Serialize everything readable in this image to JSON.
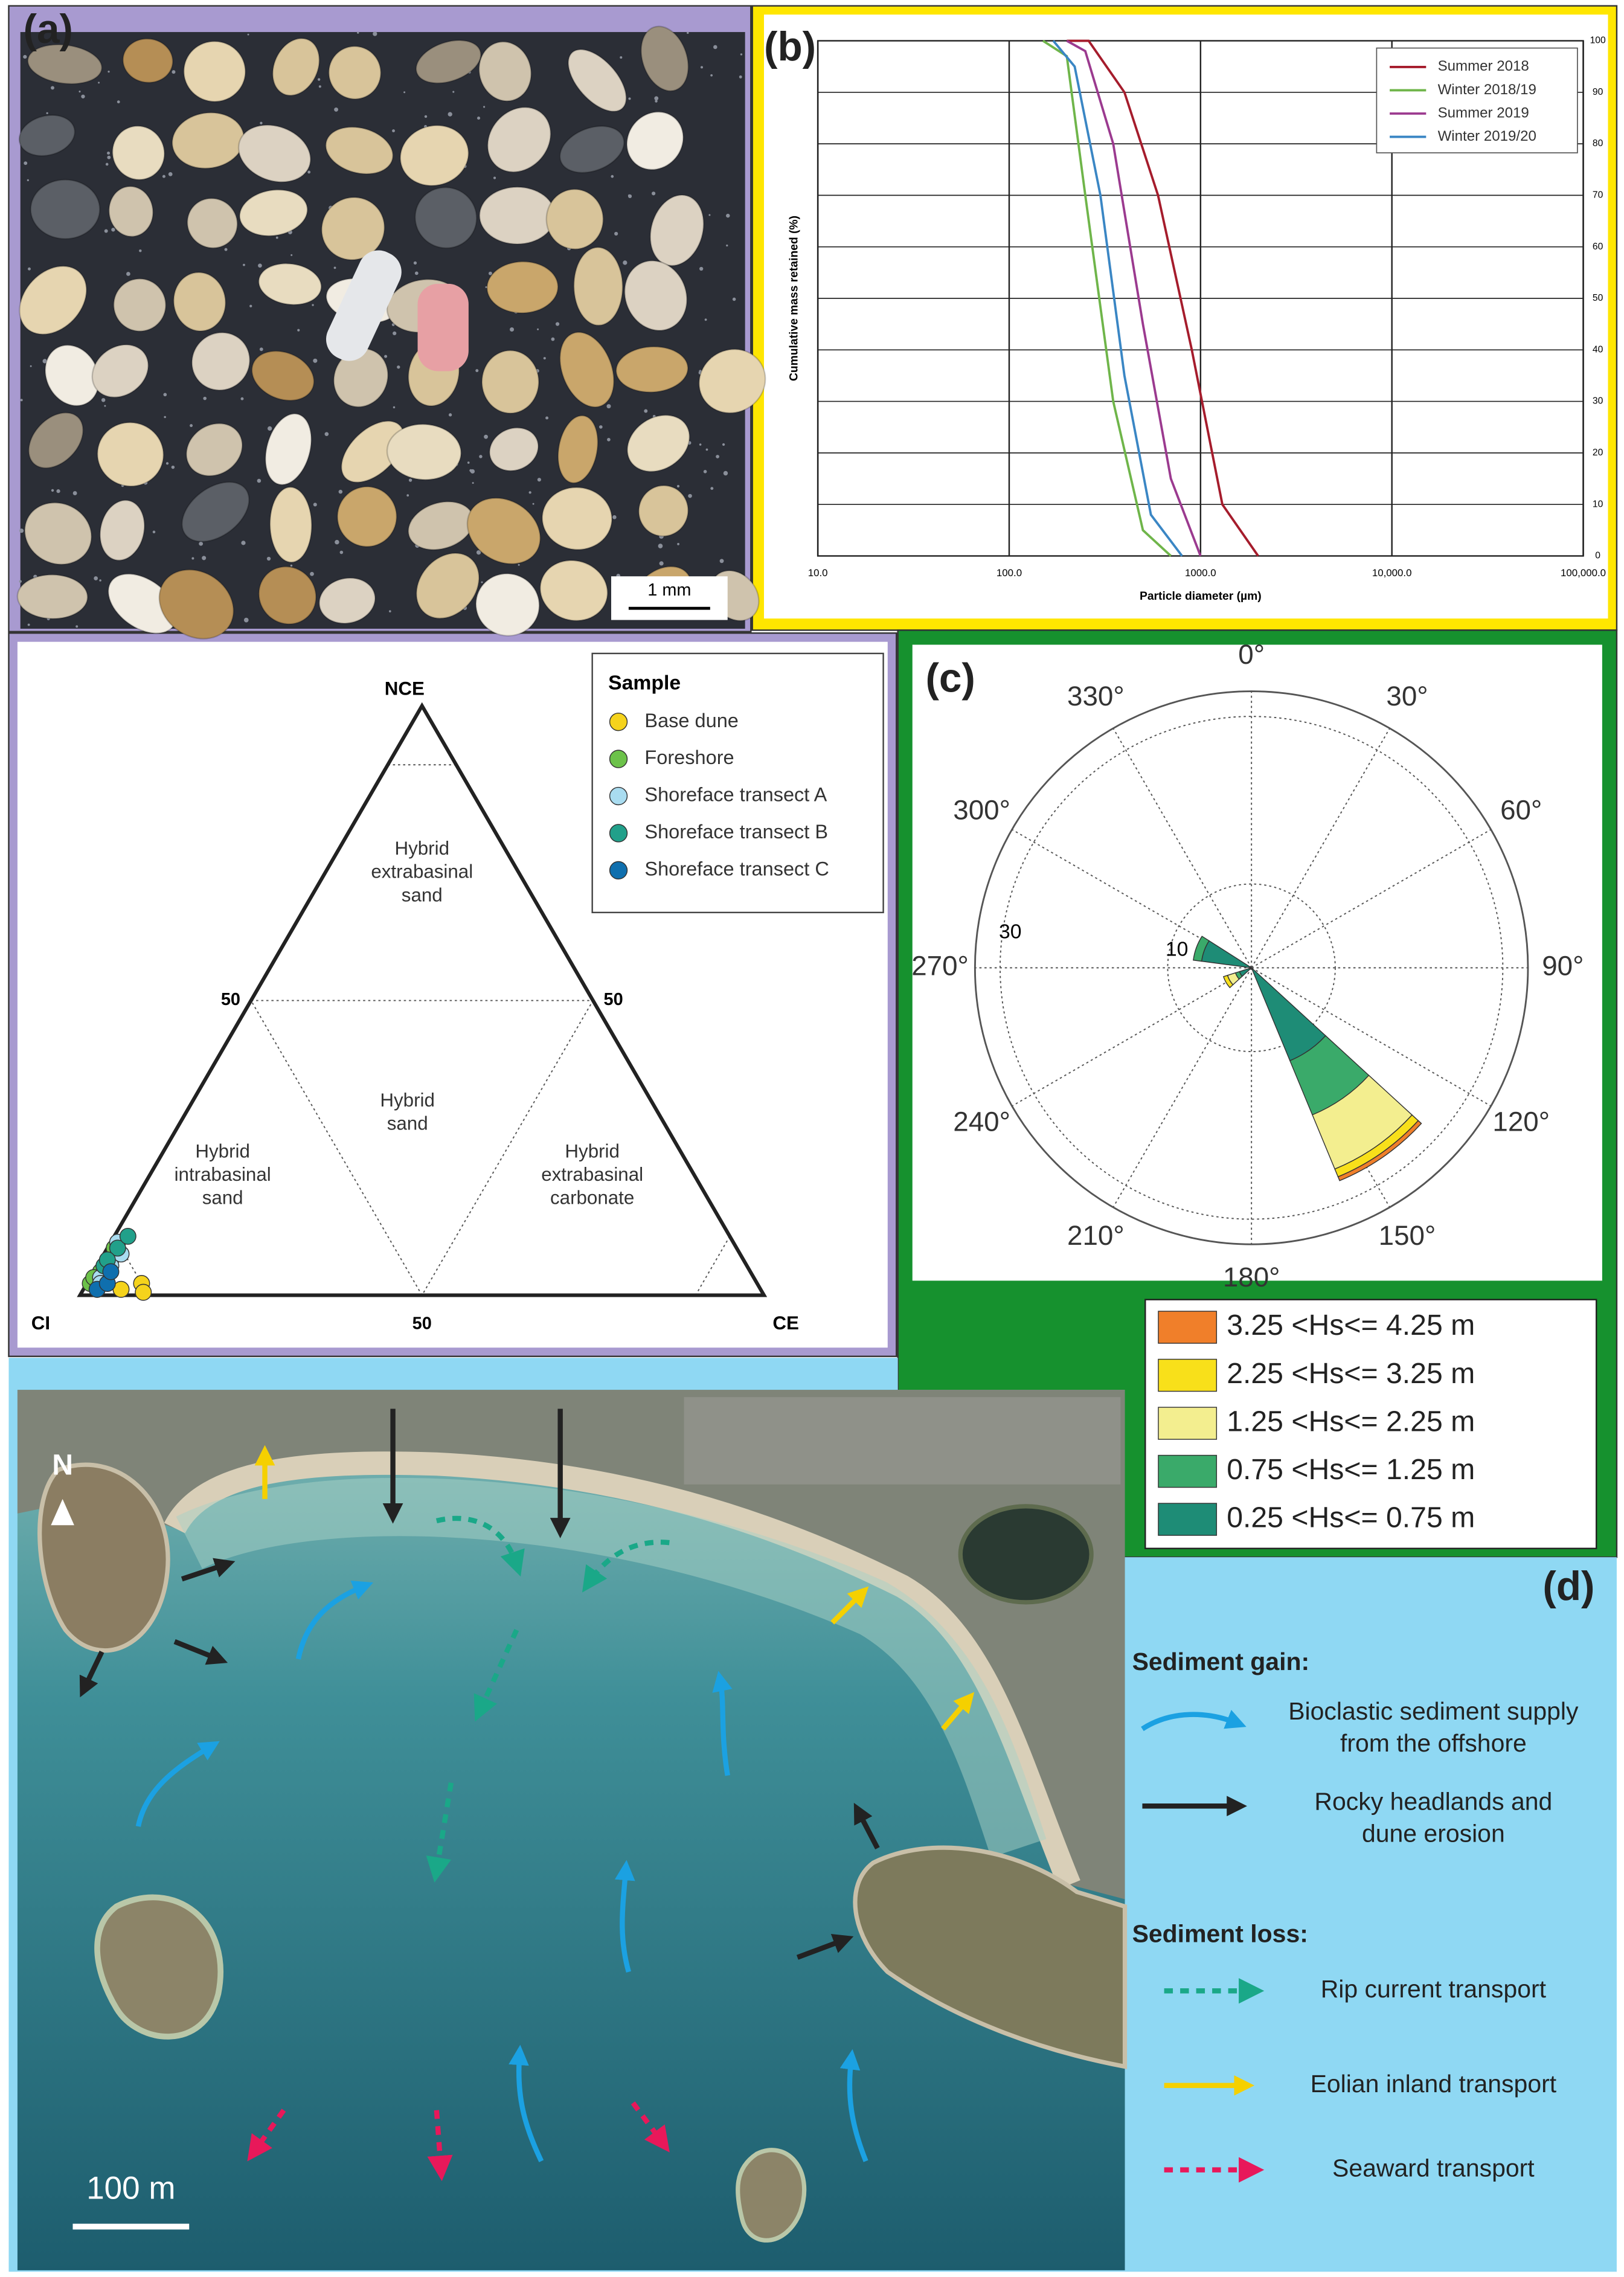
{
  "panel_a": {
    "label": "(a)",
    "scale_bar": "1 mm"
  },
  "chart_data": [
    {
      "type": "line",
      "label": "(b)",
      "xlabel": "Particle diameter (µm)",
      "ylabel": "Cumulative mass retained (%)",
      "xlog": true,
      "xlim": [
        10,
        100000
      ],
      "xticks": [
        {
          "value": 10,
          "label": "10.0"
        },
        {
          "value": 100,
          "label": "100.0"
        },
        {
          "value": 1000,
          "label": "1000.0"
        },
        {
          "value": 10000,
          "label": "10,000.0"
        },
        {
          "value": 100000,
          "label": "100,000.0"
        }
      ],
      "ylim": [
        0,
        100
      ],
      "yticks": [
        0,
        10,
        20,
        30,
        40,
        50,
        60,
        70,
        80,
        90,
        100
      ],
      "grid": true,
      "legend": "upper right",
      "series": [
        {
          "name": "Summer 2018",
          "color": "#a51c2c",
          "x": [
            200,
            260,
            400,
            600,
            900,
            1300,
            2000
          ],
          "values": [
            100,
            100,
            90,
            70,
            40,
            10,
            0
          ]
        },
        {
          "name": "Winter 2018/19",
          "color": "#6fb54a",
          "x": [
            150,
            200,
            250,
            350,
            500,
            700
          ],
          "values": [
            100,
            97,
            70,
            30,
            5,
            0
          ]
        },
        {
          "name": "Summer 2019",
          "color": "#9b3a8f",
          "x": [
            200,
            250,
            350,
            500,
            700,
            1000
          ],
          "values": [
            100,
            98,
            80,
            45,
            15,
            0
          ]
        },
        {
          "name": "Winter 2019/20",
          "color": "#3a86c4",
          "x": [
            170,
            220,
            300,
            400,
            550,
            800
          ],
          "values": [
            100,
            95,
            70,
            35,
            8,
            0
          ]
        }
      ]
    },
    {
      "type": "ternary",
      "legend_title": "Sample",
      "vertices": {
        "top": "NCE",
        "left": "CI",
        "right": "CE"
      },
      "left_ticks": [
        50
      ],
      "right_ticks": [
        50
      ],
      "bottom_ticks": [
        50
      ],
      "regions": [
        [
          "Hybrid",
          "extrabasinal",
          "sand"
        ],
        [
          "Hybrid",
          "sand"
        ],
        [
          "Hybrid",
          "intrabasinal",
          "sand"
        ],
        [
          "Hybrid",
          "extrabasinal",
          "carbonate"
        ]
      ],
      "series": [
        {
          "name": "Base dune",
          "color": "#f5d31c",
          "ce": [
            5.5,
            8,
            9
          ],
          "nce": [
            1,
            2,
            0.5
          ]
        },
        {
          "name": "Foreshore",
          "color": "#6cc24a",
          "ce": [
            0.5,
            1,
            1.5,
            1,
            0.5,
            2
          ],
          "nce": [
            2,
            4,
            6,
            8,
            3,
            1
          ]
        },
        {
          "name": "Shoreface transect A",
          "color": "#a9dcf0",
          "ce": [
            1.5,
            2,
            2.5,
            1,
            2
          ],
          "nce": [
            3,
            5,
            7,
            9,
            2
          ]
        },
        {
          "name": "Shoreface transect B",
          "color": "#21a08a",
          "ce": [
            1,
            1.5,
            2,
            1
          ],
          "nce": [
            5,
            8,
            10,
            6
          ]
        },
        {
          "name": "Shoreface transect C",
          "color": "#0f6fae",
          "ce": [
            2,
            3,
            2.5
          ],
          "nce": [
            1,
            2,
            4
          ]
        }
      ]
    },
    {
      "type": "polar_bar",
      "label": "(c)",
      "angle_ticks": [
        {
          "value": 0,
          "label": "0°"
        },
        {
          "value": 30,
          "label": "30°"
        },
        {
          "value": 60,
          "label": "60°"
        },
        {
          "value": 90,
          "label": "90°"
        },
        {
          "value": 120,
          "label": "120°"
        },
        {
          "value": 150,
          "label": "150°"
        },
        {
          "value": 180,
          "label": "180°"
        },
        {
          "value": 210,
          "label": "210°"
        },
        {
          "value": 240,
          "label": "240°"
        },
        {
          "value": 270,
          "label": "270°"
        },
        {
          "value": 300,
          "label": "300°"
        },
        {
          "value": 330,
          "label": "330°"
        }
      ],
      "rlim": [
        0,
        33
      ],
      "rticks": [
        10,
        30
      ],
      "sectors": [
        145,
        290,
        240
      ],
      "sector_width": 25,
      "series": [
        {
          "name": "3.25 <Hs<= 4.25 m",
          "color": "#f07f2a",
          "values": [
            0.5,
            0,
            0
          ]
        },
        {
          "name": "2.25 <Hs<= 3.25 m",
          "color": "#f8e01a",
          "values": [
            1,
            0,
            0.5
          ]
        },
        {
          "name": "1.25 <Hs<= 2.25 m",
          "color": "#f3ee8f",
          "values": [
            7,
            0,
            1
          ]
        },
        {
          "name": "0.75 <Hs<= 1.25 m",
          "color": "#3aaa6a",
          "values": [
            7,
            1,
            0.5
          ]
        },
        {
          "name": "0.25 <Hs<= 0.75 m",
          "color": "#1e8c76",
          "values": [
            12,
            6,
            1.5
          ]
        }
      ]
    }
  ],
  "panel_d": {
    "label": "(d)",
    "north": "N",
    "scale_bar": "100 m",
    "legend": {
      "gain_title": "Sediment gain:",
      "gain_items": [
        [
          "Bioclastic sediment supply",
          "from the offshore"
        ],
        [
          "Rocky headlands and",
          "dune erosion"
        ]
      ],
      "loss_title": "Sediment loss:",
      "loss_items": [
        [
          "Rip current transport"
        ],
        [
          "Eolian inland transport"
        ],
        [
          "Seaward transport"
        ]
      ]
    }
  }
}
